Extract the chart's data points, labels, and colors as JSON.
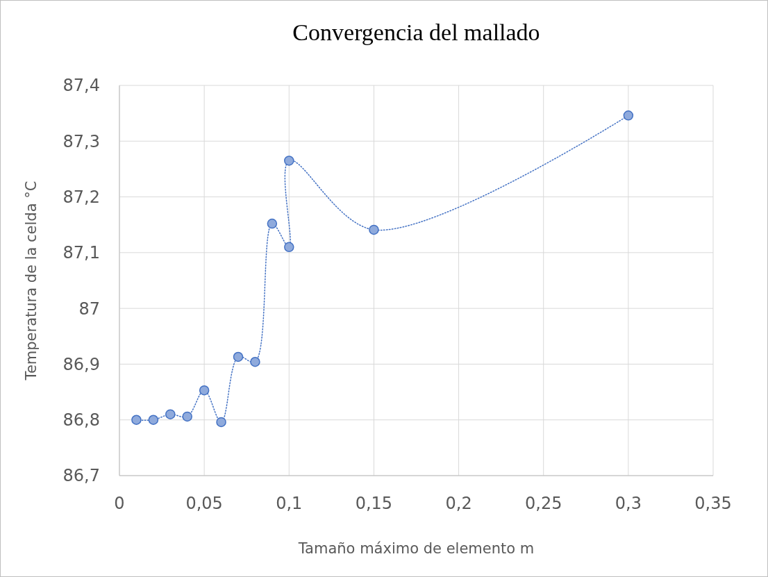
{
  "chart_data": {
    "type": "line",
    "title": "Convergencia del mallado",
    "xlabel": "Tamaño máximo de elemento m",
    "ylabel": "Temperatura de la celda °C",
    "series": [
      {
        "color": "#4472c4",
        "x": [
          0.01,
          0.02,
          0.03,
          0.04,
          0.05,
          0.06,
          0.07,
          0.08,
          0.09,
          0.1,
          0.1,
          0.15,
          0.3
        ],
        "values": [
          86.8,
          86.8,
          86.81,
          86.806,
          86.853,
          86.796,
          86.913,
          86.904,
          87.152,
          87.11,
          87.265,
          87.141,
          87.346
        ]
      }
    ],
    "xlim": [
      0,
      0.35
    ],
    "xticks": [
      {
        "value": 0,
        "label": "0"
      },
      {
        "value": 0.05,
        "label": "0,05"
      },
      {
        "value": 0.1,
        "label": "0,1"
      },
      {
        "value": 0.15,
        "label": "0,15"
      },
      {
        "value": 0.2,
        "label": "0,2"
      },
      {
        "value": 0.25,
        "label": "0,25"
      },
      {
        "value": 0.3,
        "label": "0,3"
      },
      {
        "value": 0.35,
        "label": "0,35"
      }
    ],
    "ylim": [
      86.7,
      87.4
    ],
    "yticks": [
      {
        "value": 86.7,
        "label": "86,7"
      },
      {
        "value": 86.8,
        "label": "86,8"
      },
      {
        "value": 86.9,
        "label": "86,9"
      },
      {
        "value": 87,
        "label": "87"
      },
      {
        "value": 87.1,
        "label": "87,1"
      },
      {
        "value": 87.2,
        "label": "87,2"
      },
      {
        "value": 87.3,
        "label": "87,3"
      },
      {
        "value": 87.4,
        "label": "87,4"
      }
    ],
    "grid": true,
    "marker": "circle",
    "line_style": "dotted"
  }
}
